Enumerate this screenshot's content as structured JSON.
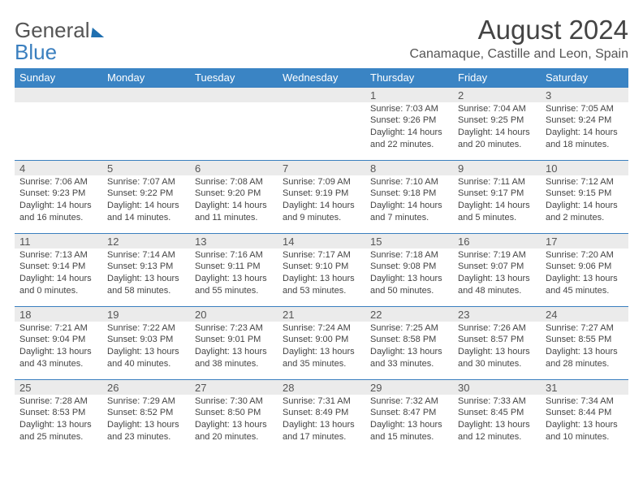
{
  "logo": {
    "text1": "General",
    "text2": "Blue"
  },
  "title": "August 2024",
  "location": "Canamaque, Castille and Leon, Spain",
  "colors": {
    "header_bg": "#3a84c4",
    "header_text": "#ffffff",
    "row_border": "#3a7fbf",
    "date_bg": "#ebebeb"
  },
  "day_headers": [
    "Sunday",
    "Monday",
    "Tuesday",
    "Wednesday",
    "Thursday",
    "Friday",
    "Saturday"
  ],
  "weeks": [
    {
      "dates": [
        "",
        "",
        "",
        "",
        "1",
        "2",
        "3"
      ],
      "info": [
        "",
        "",
        "",
        "",
        "Sunrise: 7:03 AM\nSunset: 9:26 PM\nDaylight: 14 hours and 22 minutes.",
        "Sunrise: 7:04 AM\nSunset: 9:25 PM\nDaylight: 14 hours and 20 minutes.",
        "Sunrise: 7:05 AM\nSunset: 9:24 PM\nDaylight: 14 hours and 18 minutes."
      ]
    },
    {
      "dates": [
        "4",
        "5",
        "6",
        "7",
        "8",
        "9",
        "10"
      ],
      "info": [
        "Sunrise: 7:06 AM\nSunset: 9:23 PM\nDaylight: 14 hours and 16 minutes.",
        "Sunrise: 7:07 AM\nSunset: 9:22 PM\nDaylight: 14 hours and 14 minutes.",
        "Sunrise: 7:08 AM\nSunset: 9:20 PM\nDaylight: 14 hours and 11 minutes.",
        "Sunrise: 7:09 AM\nSunset: 9:19 PM\nDaylight: 14 hours and 9 minutes.",
        "Sunrise: 7:10 AM\nSunset: 9:18 PM\nDaylight: 14 hours and 7 minutes.",
        "Sunrise: 7:11 AM\nSunset: 9:17 PM\nDaylight: 14 hours and 5 minutes.",
        "Sunrise: 7:12 AM\nSunset: 9:15 PM\nDaylight: 14 hours and 2 minutes."
      ]
    },
    {
      "dates": [
        "11",
        "12",
        "13",
        "14",
        "15",
        "16",
        "17"
      ],
      "info": [
        "Sunrise: 7:13 AM\nSunset: 9:14 PM\nDaylight: 14 hours and 0 minutes.",
        "Sunrise: 7:14 AM\nSunset: 9:13 PM\nDaylight: 13 hours and 58 minutes.",
        "Sunrise: 7:16 AM\nSunset: 9:11 PM\nDaylight: 13 hours and 55 minutes.",
        "Sunrise: 7:17 AM\nSunset: 9:10 PM\nDaylight: 13 hours and 53 minutes.",
        "Sunrise: 7:18 AM\nSunset: 9:08 PM\nDaylight: 13 hours and 50 minutes.",
        "Sunrise: 7:19 AM\nSunset: 9:07 PM\nDaylight: 13 hours and 48 minutes.",
        "Sunrise: 7:20 AM\nSunset: 9:06 PM\nDaylight: 13 hours and 45 minutes."
      ]
    },
    {
      "dates": [
        "18",
        "19",
        "20",
        "21",
        "22",
        "23",
        "24"
      ],
      "info": [
        "Sunrise: 7:21 AM\nSunset: 9:04 PM\nDaylight: 13 hours and 43 minutes.",
        "Sunrise: 7:22 AM\nSunset: 9:03 PM\nDaylight: 13 hours and 40 minutes.",
        "Sunrise: 7:23 AM\nSunset: 9:01 PM\nDaylight: 13 hours and 38 minutes.",
        "Sunrise: 7:24 AM\nSunset: 9:00 PM\nDaylight: 13 hours and 35 minutes.",
        "Sunrise: 7:25 AM\nSunset: 8:58 PM\nDaylight: 13 hours and 33 minutes.",
        "Sunrise: 7:26 AM\nSunset: 8:57 PM\nDaylight: 13 hours and 30 minutes.",
        "Sunrise: 7:27 AM\nSunset: 8:55 PM\nDaylight: 13 hours and 28 minutes."
      ]
    },
    {
      "dates": [
        "25",
        "26",
        "27",
        "28",
        "29",
        "30",
        "31"
      ],
      "info": [
        "Sunrise: 7:28 AM\nSunset: 8:53 PM\nDaylight: 13 hours and 25 minutes.",
        "Sunrise: 7:29 AM\nSunset: 8:52 PM\nDaylight: 13 hours and 23 minutes.",
        "Sunrise: 7:30 AM\nSunset: 8:50 PM\nDaylight: 13 hours and 20 minutes.",
        "Sunrise: 7:31 AM\nSunset: 8:49 PM\nDaylight: 13 hours and 17 minutes.",
        "Sunrise: 7:32 AM\nSunset: 8:47 PM\nDaylight: 13 hours and 15 minutes.",
        "Sunrise: 7:33 AM\nSunset: 8:45 PM\nDaylight: 13 hours and 12 minutes.",
        "Sunrise: 7:34 AM\nSunset: 8:44 PM\nDaylight: 13 hours and 10 minutes."
      ]
    }
  ]
}
